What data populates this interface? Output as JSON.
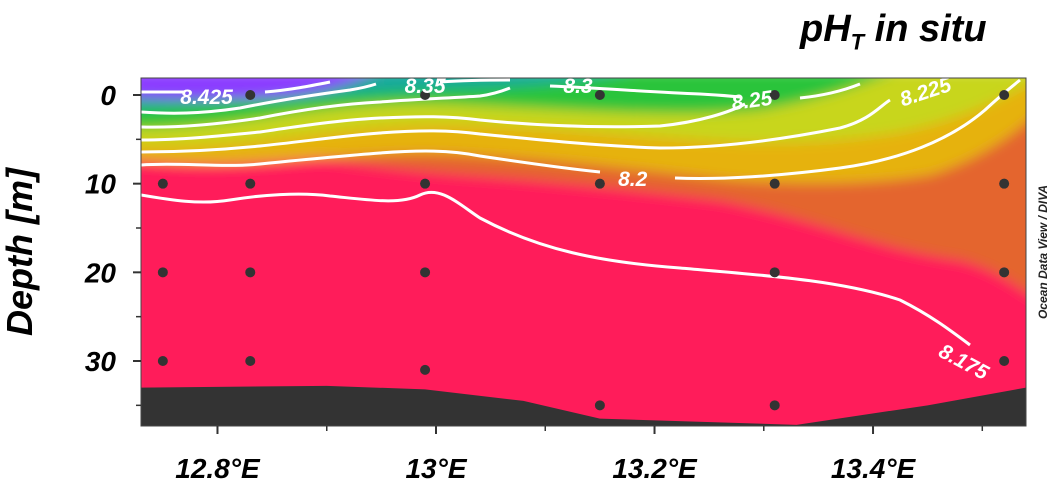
{
  "chart_data": {
    "type": "heatmap",
    "title": "pH",
    "title_subscript": "T",
    "title_suffix": " in situ",
    "ylabel": "Depth [m]",
    "xlabel": "",
    "credit": "Ocean Data View / DIVA",
    "x_unit": "°E",
    "xlim": [
      12.73,
      13.54
    ],
    "ylim": [
      0,
      37
    ],
    "y_inverted": true,
    "x_ticks": [
      12.8,
      13.0,
      13.2,
      13.4
    ],
    "x_tick_labels": [
      "12.8°E",
      "13°E",
      "13.2°E",
      "13.4°E"
    ],
    "y_ticks": [
      0,
      10,
      20,
      30
    ],
    "y_tick_labels": [
      "0",
      "10",
      "20",
      "30"
    ],
    "grid": false,
    "colors": {
      "bottom_fill": "#333333",
      "contour": "#ffffff",
      "points": "#333333"
    },
    "color_scale": [
      {
        "value": 8.175,
        "color": "#ff1f5a"
      },
      {
        "value": 8.2,
        "color": "#e4652f"
      },
      {
        "value": 8.225,
        "color": "#e6b211"
      },
      {
        "value": 8.25,
        "color": "#c8d61e"
      },
      {
        "value": 8.3,
        "color": "#2cc43a"
      },
      {
        "value": 8.35,
        "color": "#19a99b"
      },
      {
        "value": 8.425,
        "color": "#8b3dff"
      }
    ],
    "contour_labels": [
      {
        "text": "8.425",
        "x": 12.79,
        "depth": 0.2
      },
      {
        "text": "8.35",
        "x": 12.99,
        "depth": -1.0
      },
      {
        "text": "8.3",
        "x": 13.13,
        "depth": -1.0
      },
      {
        "text": "8.25",
        "x": 13.29,
        "depth": 0.6
      },
      {
        "text": "8.225",
        "x": 13.45,
        "depth": -0.4
      },
      {
        "text": "8.2",
        "x": 13.18,
        "depth": 9.5
      },
      {
        "text": "8.175",
        "x": 13.48,
        "depth": 30.0
      }
    ],
    "stations": [
      {
        "x": 12.75,
        "depths": [
          10,
          20,
          30
        ]
      },
      {
        "x": 12.83,
        "depths": [
          0,
          10,
          20,
          30
        ]
      },
      {
        "x": 12.99,
        "depths": [
          0,
          10,
          20,
          31
        ]
      },
      {
        "x": 13.15,
        "depths": [
          0,
          10,
          35
        ]
      },
      {
        "x": 13.31,
        "depths": [
          0,
          10,
          20,
          35
        ]
      },
      {
        "x": 13.52,
        "depths": [
          0,
          10,
          20,
          30
        ]
      }
    ],
    "bottom_profile": [
      {
        "x": 12.73,
        "depth": 33
      },
      {
        "x": 12.9,
        "depth": 32.8
      },
      {
        "x": 12.99,
        "depth": 33.2
      },
      {
        "x": 13.08,
        "depth": 34.5
      },
      {
        "x": 13.15,
        "depth": 36.5
      },
      {
        "x": 13.33,
        "depth": 37.2
      },
      {
        "x": 13.45,
        "depth": 35
      },
      {
        "x": 13.54,
        "depth": 33
      }
    ]
  }
}
